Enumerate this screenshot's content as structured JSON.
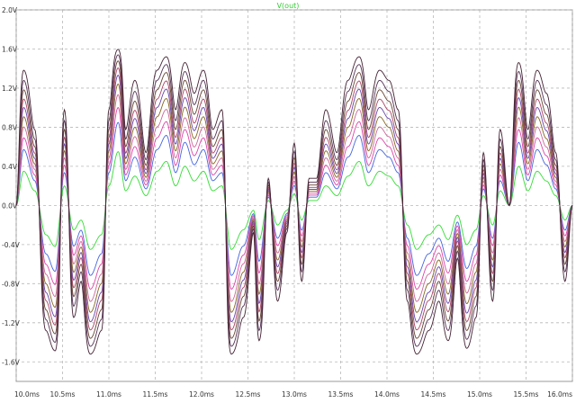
{
  "chart_data": {
    "type": "line",
    "title": "V(out)",
    "xlabel": "",
    "ylabel": "",
    "x_unit": "ms",
    "y_unit": "V",
    "xlim": [
      10.0,
      16.0
    ],
    "ylim": [
      -1.8,
      2.0
    ],
    "x_ticks": [
      "10.0ms",
      "10.5ms",
      "11.0ms",
      "11.5ms",
      "12.0ms",
      "12.5ms",
      "13.0ms",
      "13.5ms",
      "14.0ms",
      "14.5ms",
      "15.0ms",
      "15.5ms",
      "16.0ms"
    ],
    "y_ticks": [
      "2.0V",
      "1.6V",
      "1.2V",
      "0.8V",
      "0.4V",
      "0.0V",
      "-0.4V",
      "-0.8V",
      "-1.2V",
      "-1.6V"
    ],
    "x_tick_values": [
      10.0,
      10.5,
      11.0,
      11.5,
      12.0,
      12.5,
      13.0,
      13.5,
      14.0,
      14.5,
      15.0,
      15.5,
      16.0
    ],
    "y_tick_values": [
      2.0,
      1.6,
      1.2,
      0.8,
      0.4,
      0.0,
      -0.4,
      -0.8,
      -1.2,
      -1.6
    ],
    "grid": true,
    "legend": "none",
    "base_waveform": {
      "x": [
        10.0,
        10.08,
        10.2,
        10.32,
        10.42,
        10.52,
        10.62,
        10.7,
        10.8,
        10.92,
        11.0,
        11.1,
        11.18,
        11.28,
        11.4,
        11.52,
        11.62,
        11.72,
        11.82,
        11.92,
        12.02,
        12.12,
        12.22,
        12.32,
        12.45,
        12.56,
        12.62,
        12.72,
        12.82,
        12.92,
        13.0,
        13.08,
        13.16,
        13.24,
        13.34,
        13.46,
        13.58,
        13.7,
        13.8,
        13.92,
        14.02,
        14.12,
        14.22,
        14.32,
        14.45,
        14.56,
        14.66,
        14.76,
        14.86,
        14.96,
        15.04,
        15.14,
        15.22,
        15.32,
        15.42,
        15.52,
        15.62,
        15.72,
        15.82,
        15.92,
        16.0
      ],
      "y": [
        0.0,
        0.35,
        0.15,
        -0.3,
        -0.42,
        0.2,
        -0.25,
        -0.15,
        -0.45,
        -0.3,
        0.2,
        0.55,
        0.15,
        0.3,
        0.1,
        0.35,
        0.45,
        0.2,
        0.4,
        0.25,
        0.35,
        0.15,
        0.2,
        -0.45,
        -0.25,
        -0.05,
        -0.35,
        0.05,
        -0.2,
        -0.05,
        0.12,
        -0.15,
        0.05,
        0.05,
        0.2,
        0.1,
        0.3,
        0.45,
        0.2,
        0.35,
        0.3,
        0.2,
        -0.2,
        -0.45,
        -0.3,
        -0.2,
        -0.35,
        -0.1,
        -0.4,
        -0.25,
        0.1,
        -0.2,
        0.15,
        0.0,
        0.4,
        0.15,
        0.35,
        0.25,
        0.1,
        -0.15,
        0.0
      ]
    },
    "series": [
      {
        "gain": 1.0,
        "color": "#33dd33"
      },
      {
        "gain": 1.7,
        "color": "#4466dd"
      },
      {
        "gain": 2.1,
        "color": "#dd44aa"
      },
      {
        "gain": 2.5,
        "color": "#cc6699"
      },
      {
        "gain": 2.9,
        "color": "#886622"
      },
      {
        "gain": 3.3,
        "color": "#6644aa"
      },
      {
        "gain": 3.7,
        "color": "#aa4466"
      },
      {
        "gain": 4.2,
        "color": "#664433"
      },
      {
        "gain": 4.8,
        "color": "#553355"
      },
      {
        "gain": 5.6,
        "color": "#442233"
      }
    ],
    "clip_level": 1.68
  }
}
